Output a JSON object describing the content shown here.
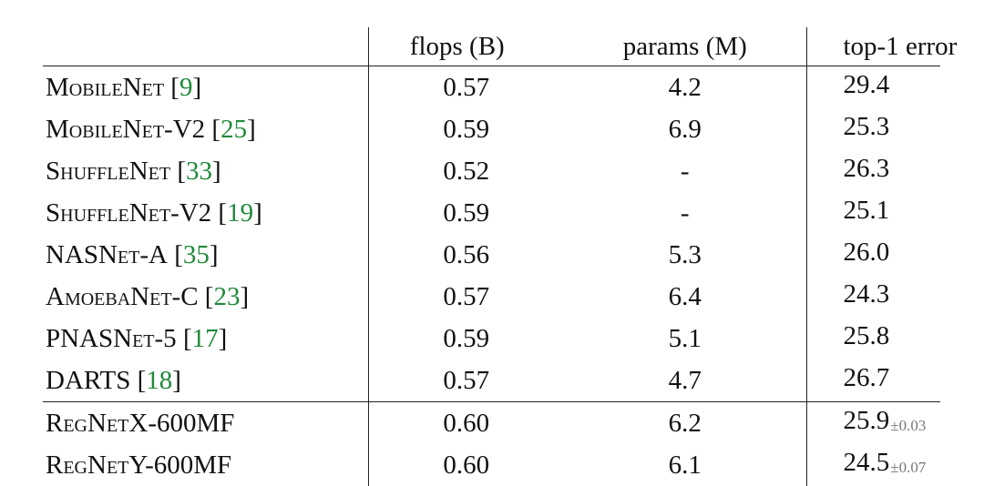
{
  "table": {
    "headers": {
      "model": "",
      "flops": "flops (B)",
      "params": "params (M)",
      "error": "top-1 error"
    },
    "rows": [
      {
        "model": "MobileNet",
        "cite_open": " [",
        "cite": "9",
        "cite_close": "]",
        "flops": "0.57",
        "params": "4.2",
        "error": "29.4",
        "std": ""
      },
      {
        "model": "MobileNet-V2",
        "cite_open": " [",
        "cite": "25",
        "cite_close": "]",
        "flops": "0.59",
        "params": "6.9",
        "error": "25.3",
        "std": ""
      },
      {
        "model": "ShuffleNet",
        "cite_open": " [",
        "cite": "33",
        "cite_close": "]",
        "flops": "0.52",
        "params": "-",
        "error": "26.3",
        "std": ""
      },
      {
        "model": "ShuffleNet-V2",
        "cite_open": " [",
        "cite": "19",
        "cite_close": "]",
        "flops": "0.59",
        "params": "-",
        "error": "25.1",
        "std": ""
      },
      {
        "model": "NASNet-A",
        "cite_open": " [",
        "cite": "35",
        "cite_close": "]",
        "flops": "0.56",
        "params": "5.3",
        "error": "26.0",
        "std": ""
      },
      {
        "model": "AmoebaNet-C",
        "cite_open": " [",
        "cite": "23",
        "cite_close": "]",
        "flops": "0.57",
        "params": "6.4",
        "error": "24.3",
        "std": ""
      },
      {
        "model": "PNASNet-5",
        "cite_open": " [",
        "cite": "17",
        "cite_close": "]",
        "flops": "0.59",
        "params": "5.1",
        "error": "25.8",
        "std": ""
      },
      {
        "model": "DARTS",
        "cite_open": " [",
        "cite": "18",
        "cite_close": "]",
        "flops": "0.57",
        "params": "4.7",
        "error": "26.7",
        "std": ""
      },
      {
        "model": "RegNetX-600MF",
        "cite_open": "",
        "cite": "",
        "cite_close": "",
        "flops": "0.60",
        "params": "6.2",
        "error": "25.9",
        "std": "±0.03"
      },
      {
        "model": "RegNetY-600MF",
        "cite_open": "",
        "cite": "",
        "cite_close": "",
        "flops": "0.60",
        "params": "6.1",
        "error": "24.5",
        "std": "±0.07"
      }
    ]
  }
}
